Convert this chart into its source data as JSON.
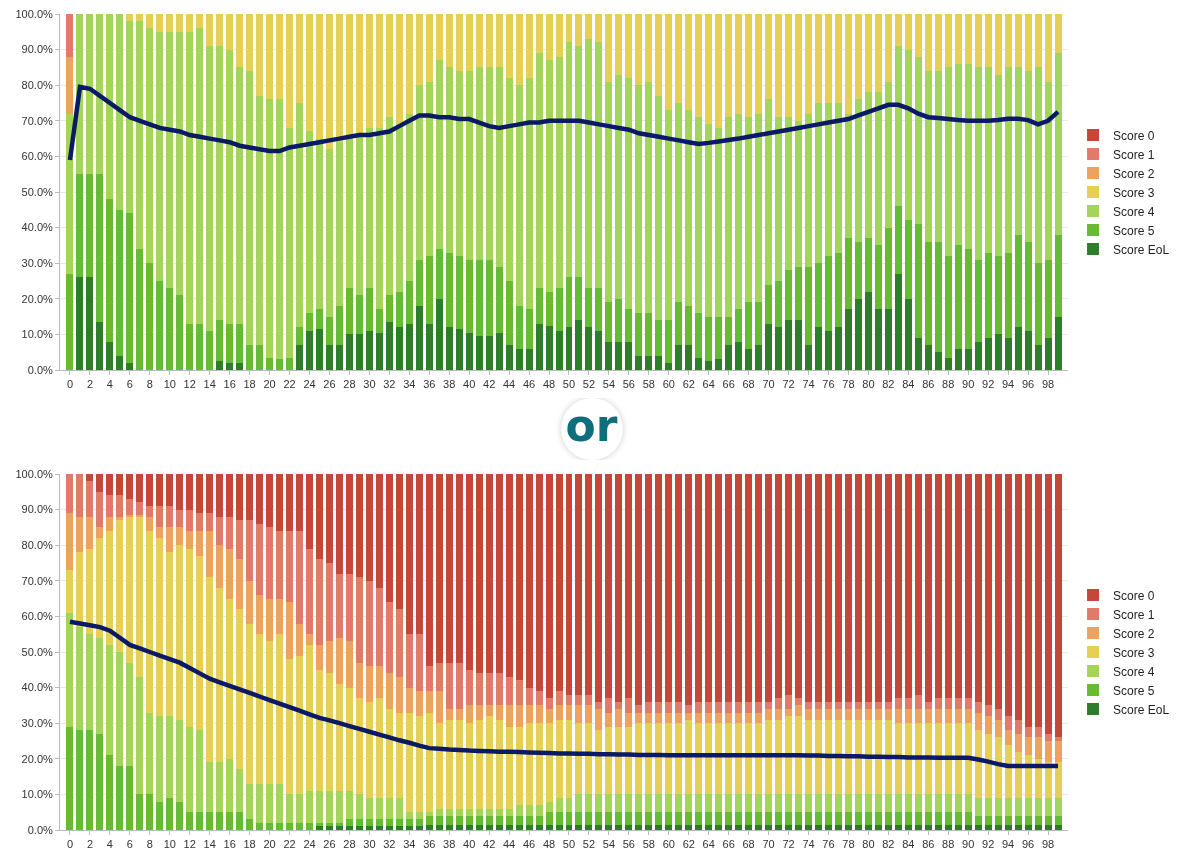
{
  "chart_data": [
    {
      "type": "bar",
      "stacked": true,
      "legend": "right",
      "grid": "y",
      "x": [
        0,
        1,
        2,
        3,
        4,
        5,
        6,
        7,
        8,
        9,
        10,
        11,
        12,
        13,
        14,
        15,
        16,
        17,
        18,
        19,
        20,
        21,
        22,
        23,
        24,
        25,
        26,
        27,
        28,
        29,
        30,
        31,
        32,
        33,
        34,
        35,
        36,
        37,
        38,
        39,
        40,
        41,
        42,
        43,
        44,
        45,
        46,
        47,
        48,
        49,
        50,
        51,
        52,
        53,
        54,
        55,
        56,
        57,
        58,
        59,
        60,
        61,
        62,
        63,
        64,
        65,
        66,
        67,
        68,
        69,
        70,
        71,
        72,
        73,
        74,
        75,
        76,
        77,
        78,
        79,
        80,
        81,
        82,
        83,
        84,
        85,
        86,
        87,
        88,
        89,
        90,
        91,
        92,
        93,
        94,
        95,
        96,
        97,
        98,
        99
      ],
      "xlim": [
        -1,
        100
      ],
      "xticks": [
        0,
        2,
        4,
        6,
        8,
        10,
        12,
        14,
        16,
        18,
        20,
        22,
        24,
        26,
        28,
        30,
        32,
        34,
        36,
        38,
        40,
        42,
        44,
        46,
        48,
        50,
        52,
        54,
        56,
        58,
        60,
        62,
        64,
        66,
        68,
        70,
        72,
        74,
        76,
        78,
        80,
        82,
        84,
        86,
        88,
        90,
        92,
        94,
        96,
        98
      ],
      "ylim": [
        0,
        100
      ],
      "yticks": [
        {
          "value": 0,
          "label": "0.0%"
        },
        {
          "value": 10,
          "label": "10.0%"
        },
        {
          "value": 20,
          "label": "20.0%"
        },
        {
          "value": 30,
          "label": "30.0%"
        },
        {
          "value": 40,
          "label": "40.0%"
        },
        {
          "value": 50,
          "label": "50.0%"
        },
        {
          "value": 60,
          "label": "60.0%"
        },
        {
          "value": 70,
          "label": "70.0%"
        },
        {
          "value": 80,
          "label": "80.0%"
        },
        {
          "value": 90,
          "label": "90.0%"
        },
        {
          "value": 100,
          "label": "100.0%"
        }
      ],
      "series": [
        {
          "name": "Score EoL",
          "color": "#2e7d2a",
          "values": [
            0,
            26,
            26,
            13.5,
            8,
            4,
            2,
            0,
            0,
            0,
            0,
            0,
            0,
            0,
            0,
            2.5,
            2,
            2,
            0,
            0,
            0,
            0,
            0,
            7,
            11,
            11.5,
            7,
            7,
            10,
            10,
            11,
            10.5,
            13.5,
            12,
            13,
            18,
            13,
            20,
            12,
            11.5,
            10.5,
            9.5,
            9.5,
            10.5,
            7,
            6,
            6,
            13,
            12.5,
            11,
            12,
            14,
            12,
            11,
            8,
            8,
            8,
            4,
            4,
            4,
            2,
            7,
            7,
            3.5,
            2.5,
            3,
            7,
            8,
            6,
            7,
            13,
            12,
            14,
            14,
            7,
            12,
            11,
            12,
            17,
            20,
            22,
            17,
            17,
            27,
            20,
            9,
            7,
            5,
            3.5,
            6,
            6,
            8,
            9,
            10,
            9,
            12,
            11,
            7,
            9,
            15
          ]
        },
        {
          "name": "Score 5",
          "color": "#66bb33",
          "values": [
            27,
            29,
            29,
            41.5,
            40,
            41,
            42,
            34,
            30,
            25,
            23,
            21,
            13,
            13,
            11,
            11.5,
            11,
            11,
            7,
            7,
            3.5,
            3,
            3.5,
            5,
            5,
            5.5,
            8,
            11,
            13,
            11,
            12,
            6.5,
            7.5,
            10,
            12,
            13,
            19,
            14,
            21,
            20.5,
            20.5,
            21.5,
            21.5,
            18.5,
            18,
            12,
            11,
            10,
            9.5,
            12,
            14,
            12,
            11,
            12,
            11,
            12,
            9,
            12,
            12,
            10,
            12,
            12,
            11,
            12.5,
            12.5,
            12,
            8,
            9,
            13,
            12,
            11,
            13,
            14,
            15,
            22,
            18,
            21,
            21,
            20,
            16,
            15,
            18,
            23,
            19,
            22,
            32,
            29,
            31,
            28.5,
            29,
            28,
            23,
            24,
            22,
            24,
            26,
            25,
            23,
            22,
            23
          ]
        },
        {
          "name": "Score 4",
          "color": "#a5d45a",
          "values": [
            45,
            45,
            45,
            45,
            52,
            55,
            54,
            64,
            66,
            70,
            72,
            74,
            82,
            83,
            80,
            77,
            77,
            72,
            77,
            70,
            72.5,
            73,
            64.5,
            63,
            51,
            48,
            47,
            46,
            42,
            45,
            45,
            51,
            50,
            47,
            47,
            49,
            49,
            53,
            52,
            52,
            53,
            54,
            54,
            56,
            57,
            62,
            65,
            66,
            65,
            65,
            66,
            65,
            70,
            69,
            62,
            63,
            65,
            64,
            65,
            63,
            59,
            56,
            55,
            55,
            54,
            53,
            56,
            55,
            52,
            53,
            52,
            46,
            43,
            41,
            43,
            45,
            43,
            42,
            35,
            40,
            41,
            43,
            41,
            45,
            48,
            47,
            48,
            48,
            53,
            51,
            52,
            54,
            52,
            51,
            52,
            47,
            48,
            55,
            50,
            51
          ]
        },
        {
          "name": "Score 3",
          "color": "#e6cf55",
          "values": [
            0,
            0,
            0,
            0,
            0,
            0,
            2,
            2,
            4,
            5,
            5,
            5,
            5,
            4,
            9,
            9,
            10,
            15,
            16,
            23,
            24,
            24,
            32,
            25,
            33,
            35,
            38,
            36,
            35,
            34,
            32,
            32,
            29,
            31,
            28,
            20,
            19,
            13,
            15,
            16,
            16,
            15,
            15,
            15,
            18,
            20,
            18,
            11,
            13,
            12,
            8,
            9,
            7,
            8,
            19,
            17,
            18,
            20,
            19,
            23,
            27,
            25,
            27,
            29,
            31,
            32,
            29,
            28,
            29,
            28,
            24,
            29,
            29,
            30,
            28,
            25,
            25,
            25,
            28,
            24,
            22,
            22,
            19,
            9,
            10,
            12,
            16,
            16,
            15,
            14,
            14,
            15,
            15,
            17,
            15,
            15,
            16,
            15,
            19,
            11
          ]
        },
        {
          "name": "Score 2",
          "color": "#eda35e",
          "values": [
            16,
            0,
            0,
            0,
            0,
            0,
            0,
            0,
            0,
            0,
            0,
            0,
            0,
            0,
            0,
            0,
            0,
            0,
            0,
            0,
            0,
            0,
            0,
            0,
            0,
            0,
            0,
            0,
            0,
            0,
            0,
            0,
            0,
            0,
            0,
            0,
            0,
            0,
            0,
            0,
            0,
            0,
            0,
            0,
            0,
            0,
            0,
            0,
            0,
            0,
            0,
            0,
            0,
            0,
            0,
            0,
            0,
            0,
            0,
            0,
            0,
            0,
            0,
            0,
            0,
            0,
            0,
            0,
            0,
            0,
            0,
            0,
            0,
            0,
            0,
            0,
            0,
            0,
            0,
            0,
            0,
            0,
            0,
            0,
            0,
            0,
            0,
            0,
            0,
            0,
            0,
            0,
            0,
            0,
            0,
            0,
            0,
            0,
            0,
            0
          ]
        },
        {
          "name": "Score 1",
          "color": "#e27a6a",
          "values": [
            12,
            0,
            0,
            0,
            0,
            0,
            0,
            0,
            0,
            0,
            0,
            0,
            0,
            0,
            0,
            0,
            0,
            0,
            0,
            0,
            0,
            0,
            0,
            0,
            0,
            0,
            0,
            0,
            0,
            0,
            0,
            0,
            0,
            0,
            0,
            0,
            0,
            0,
            0,
            0,
            0,
            0,
            0,
            0,
            0,
            0,
            0,
            0,
            0,
            0,
            0,
            0,
            0,
            0,
            0,
            0,
            0,
            0,
            0,
            0,
            0,
            0,
            0,
            0,
            0,
            0,
            0,
            0,
            0,
            0,
            0,
            0,
            0,
            0,
            0,
            0,
            0,
            0,
            0,
            0,
            0,
            0,
            0,
            0,
            0,
            0,
            0,
            0,
            0,
            0,
            0,
            0,
            0,
            0,
            0,
            0,
            0,
            0,
            0,
            0
          ]
        },
        {
          "name": "Score 0",
          "color": "#c4473a",
          "values": [
            0,
            0,
            0,
            0,
            0,
            0,
            0,
            0,
            0,
            0,
            0,
            0,
            0,
            0,
            0,
            0,
            0,
            0,
            0,
            0,
            0,
            0,
            0,
            0,
            0,
            0,
            0,
            0,
            0,
            0,
            0,
            0,
            0,
            0,
            0,
            0,
            0,
            0,
            0,
            0,
            0,
            0,
            0,
            0,
            0,
            0,
            0,
            0,
            0,
            0,
            0,
            0,
            0,
            0,
            0,
            0,
            0,
            0,
            0,
            0,
            0,
            0,
            0,
            0,
            0,
            0,
            0,
            0,
            0,
            0,
            0,
            0,
            0,
            0,
            0,
            0,
            0,
            0,
            0,
            0,
            0,
            0,
            0,
            0,
            0,
            0,
            0,
            0,
            0,
            0,
            0,
            0,
            0,
            0,
            0,
            0,
            0,
            0,
            0,
            0
          ]
        },
        {
          "type": "line",
          "color": "#0b1a66",
          "values": [
            59,
            79.5,
            79,
            77,
            75,
            73,
            71,
            70,
            69,
            68,
            67.5,
            67,
            66,
            65.5,
            65,
            64.5,
            64,
            63,
            62.5,
            62,
            61.5,
            61.5,
            62.5,
            63,
            63.5,
            64,
            64.5,
            65,
            65.5,
            66,
            66,
            66.5,
            67,
            68.5,
            70,
            71.5,
            71.5,
            71,
            71,
            70.5,
            70.5,
            69.5,
            68.5,
            68,
            68.5,
            69,
            69.5,
            69.5,
            70,
            70,
            70,
            70,
            69.5,
            69,
            68.5,
            68,
            67.5,
            66.5,
            66,
            65.5,
            65,
            64.5,
            64,
            63.5,
            63.8,
            64.2,
            64.6,
            65,
            65.5,
            66,
            66.5,
            67,
            67.5,
            68,
            68.5,
            69,
            69.5,
            70,
            70.5,
            71.5,
            72.5,
            73.5,
            74.5,
            74.5,
            73.5,
            72,
            71,
            70.8,
            70.5,
            70.2,
            70,
            70,
            70,
            70.2,
            70.6,
            70.6,
            70.2,
            69,
            70,
            72.5
          ]
        }
      ]
    },
    {
      "type": "other",
      "annotations": [
        "or"
      ]
    },
    {
      "type": "bar",
      "stacked": true,
      "legend": "right",
      "grid": "y",
      "x": [
        0,
        1,
        2,
        3,
        4,
        5,
        6,
        7,
        8,
        9,
        10,
        11,
        12,
        13,
        14,
        15,
        16,
        17,
        18,
        19,
        20,
        21,
        22,
        23,
        24,
        25,
        26,
        27,
        28,
        29,
        30,
        31,
        32,
        33,
        34,
        35,
        36,
        37,
        38,
        39,
        40,
        41,
        42,
        43,
        44,
        45,
        46,
        47,
        48,
        49,
        50,
        51,
        52,
        53,
        54,
        55,
        56,
        57,
        58,
        59,
        60,
        61,
        62,
        63,
        64,
        65,
        66,
        67,
        68,
        69,
        70,
        71,
        72,
        73,
        74,
        75,
        76,
        77,
        78,
        79,
        80,
        81,
        82,
        83,
        84,
        85,
        86,
        87,
        88,
        89,
        90,
        91,
        92,
        93,
        94,
        95,
        96,
        97,
        98,
        99
      ],
      "xlim": [
        -1,
        100
      ],
      "xticks": [
        0,
        2,
        4,
        6,
        8,
        10,
        12,
        14,
        16,
        18,
        20,
        22,
        24,
        26,
        28,
        30,
        32,
        34,
        36,
        38,
        40,
        42,
        44,
        46,
        48,
        50,
        52,
        54,
        56,
        58,
        60,
        62,
        64,
        66,
        68,
        70,
        72,
        74,
        76,
        78,
        80,
        82,
        84,
        86,
        88,
        90,
        92,
        94,
        96,
        98
      ],
      "ylim": [
        0,
        100
      ],
      "yticks": [
        {
          "value": 0,
          "label": "0.0%"
        },
        {
          "value": 10,
          "label": "10.0%"
        },
        {
          "value": 20,
          "label": "20.0%"
        },
        {
          "value": 30,
          "label": "30.0%"
        },
        {
          "value": 40,
          "label": "40.0%"
        },
        {
          "value": 50,
          "label": "50.0%"
        },
        {
          "value": 60,
          "label": "60.0%"
        },
        {
          "value": 70,
          "label": "70.0%"
        },
        {
          "value": 80,
          "label": "80.0%"
        },
        {
          "value": 90,
          "label": "90.0%"
        },
        {
          "value": 100,
          "label": "100.0%"
        }
      ],
      "series": [
        {
          "name": "Score EoL",
          "color": "#2e7d2a",
          "values": [
            0,
            0,
            0,
            0,
            0,
            0,
            0,
            0,
            0,
            0,
            0,
            0,
            0,
            0,
            0,
            0,
            0,
            0,
            0,
            0,
            0,
            0,
            0,
            0,
            0,
            1,
            1,
            1,
            1,
            1,
            1,
            1,
            1,
            1,
            1,
            1,
            1.5,
            1.5,
            1.5,
            1.5,
            1.5,
            1.5,
            1.5,
            1.5,
            1.5,
            1.5,
            1.5,
            1.5,
            1.5,
            1.5,
            1.5,
            1.5,
            1.5,
            1.5,
            1.5,
            1.5,
            1.5,
            1.5,
            1.5,
            1.5,
            1.5,
            1.5,
            1.5,
            1.5,
            1.5,
            1.5,
            1.5,
            1.5,
            1.5,
            1.5,
            1.5,
            1.5,
            1.5,
            1.5,
            1.5,
            1.5,
            1.5,
            1.5,
            1.5,
            1.5,
            1.5,
            1.5,
            1.5,
            1.5,
            1.5,
            1.5,
            1.5,
            1.5,
            1.5,
            1.5,
            1.5,
            1.5,
            1.5,
            1.5,
            1.5,
            1.5,
            1.5,
            1.5,
            1.5,
            1.5
          ]
        },
        {
          "name": "Score 5",
          "color": "#66bb33",
          "values": [
            29,
            28,
            28,
            27,
            21,
            18,
            18,
            10,
            10,
            8,
            9,
            8,
            5,
            5,
            5,
            5,
            5,
            5,
            3,
            2,
            2,
            2,
            2,
            2,
            2,
            1,
            1,
            1,
            2,
            2,
            2,
            2,
            2,
            2,
            2,
            2,
            2.5,
            2.5,
            2.5,
            2.5,
            2.5,
            2.5,
            2.5,
            2.5,
            2.5,
            2.5,
            2.5,
            2.5,
            3.5,
            3.5,
            3.5,
            3.5,
            3.5,
            3.5,
            3.5,
            3.5,
            3.5,
            3.5,
            3.5,
            3.5,
            3.5,
            3.5,
            3.5,
            3.5,
            3.5,
            3.5,
            3.5,
            3.5,
            3.5,
            3.5,
            3.5,
            3.5,
            3.5,
            3.5,
            3.5,
            3.5,
            3.5,
            3.5,
            3.5,
            3.5,
            3.5,
            3.5,
            3.5,
            3.5,
            3.5,
            3.5,
            3.5,
            3.5,
            3.5,
            3.5,
            3.5,
            2.5,
            2.5,
            2.5,
            2.5,
            2.5,
            2.5,
            2.5,
            2.5,
            2.5
          ]
        },
        {
          "name": "Score 4",
          "color": "#a5d45a",
          "values": [
            32,
            29,
            27,
            27,
            31,
            32,
            29,
            33,
            23,
            24,
            23,
            23,
            24,
            23,
            14,
            14,
            15,
            12,
            10,
            11,
            11,
            11,
            8,
            8,
            9,
            9,
            9,
            9,
            8,
            7,
            6,
            6,
            6,
            6,
            2,
            2,
            1,
            2,
            2,
            2,
            2,
            2,
            2,
            2,
            2,
            3,
            3,
            3,
            3,
            4,
            4,
            5,
            5,
            5,
            5,
            5,
            5,
            5,
            5,
            5,
            5,
            5,
            5,
            5,
            5,
            5,
            5,
            5,
            5,
            5,
            5,
            5,
            5,
            5,
            5,
            5,
            5,
            5,
            5,
            5,
            5,
            5,
            5,
            5,
            5,
            5,
            5,
            5,
            5,
            5,
            5,
            5,
            5,
            5,
            5,
            5,
            5,
            5,
            5,
            5
          ]
        },
        {
          "name": "Score 3",
          "color": "#e6cf55",
          "values": [
            12,
            21,
            24,
            28,
            32,
            37,
            41,
            45,
            51,
            50,
            46,
            49,
            50,
            49,
            52,
            49,
            45,
            45,
            45,
            42,
            40,
            42,
            38,
            39,
            41,
            34,
            33,
            30,
            29,
            27,
            27,
            28,
            25,
            24,
            28,
            27,
            28,
            24,
            25,
            25,
            24,
            25,
            26,
            25,
            23,
            22,
            23,
            23,
            22,
            22,
            22,
            20,
            20,
            18,
            19,
            19,
            19,
            20,
            20,
            20,
            20,
            20,
            21,
            20,
            20,
            20,
            20,
            20,
            20,
            20,
            21,
            21,
            22,
            22,
            21,
            21,
            21,
            21,
            21,
            21,
            21,
            21,
            21,
            20,
            20,
            20,
            20,
            20,
            20,
            20,
            20,
            19,
            18,
            17,
            15,
            13,
            12,
            11,
            10,
            10
          ]
        },
        {
          "name": "Score 2",
          "color": "#eda35e",
          "values": [
            16,
            10,
            9,
            3,
            4,
            1,
            0.5,
            0.5,
            4,
            3,
            7,
            5,
            5,
            7,
            13,
            12,
            14,
            14,
            12,
            11,
            12,
            10,
            16,
            9,
            3,
            7,
            9,
            13,
            13,
            10,
            10,
            9,
            10,
            10,
            7,
            7,
            6,
            9,
            3,
            3,
            5,
            4,
            3,
            4,
            6,
            6,
            5,
            5,
            4,
            4,
            4,
            5,
            5,
            6,
            4,
            5,
            4,
            3,
            3,
            3,
            3,
            3,
            2,
            3,
            3,
            3,
            3,
            3,
            3,
            3,
            3,
            3,
            2,
            3,
            3,
            3,
            3,
            3,
            3,
            3,
            3,
            3,
            3,
            4,
            4,
            4,
            4,
            4,
            4,
            4,
            4,
            5,
            5,
            5,
            4,
            5,
            5,
            6,
            6,
            6
          ]
        },
        {
          "name": "Score 1",
          "color": "#e27a6a",
          "values": [
            11,
            12,
            10,
            10,
            6,
            6,
            4.5,
            3.5,
            3,
            6,
            6,
            5,
            6,
            5,
            5,
            8,
            9,
            11,
            17,
            20,
            20,
            19,
            20,
            26,
            24,
            24,
            22,
            18,
            19,
            24,
            24,
            22,
            20,
            19,
            15,
            16,
            7,
            8,
            13,
            13,
            10,
            9,
            9,
            9,
            8,
            7,
            5,
            4,
            3,
            4,
            3,
            3,
            3,
            2,
            4,
            2,
            4,
            2,
            3,
            3,
            3,
            3,
            2,
            3,
            3,
            3,
            3,
            3,
            3,
            3,
            2,
            3,
            4,
            2,
            2,
            2,
            2,
            2,
            2,
            2,
            2,
            2,
            2,
            3,
            3,
            4,
            2,
            3,
            3,
            3,
            3,
            3,
            3,
            3,
            4,
            4,
            3,
            3,
            2,
            1
          ]
        },
        {
          "name": "Score 0",
          "color": "#c4473a",
          "values": [
            0,
            0,
            2,
            5,
            6,
            6,
            7,
            8,
            9,
            9,
            9,
            10,
            10,
            11,
            11,
            12,
            12,
            13,
            13,
            14,
            15,
            16,
            16,
            16,
            21,
            24,
            25,
            28,
            28,
            29,
            30,
            32,
            36,
            38,
            45,
            45,
            54,
            53,
            53,
            53,
            55,
            56,
            56,
            56,
            57,
            58,
            60,
            61,
            63,
            61,
            62,
            62,
            62,
            64,
            63,
            64,
            63,
            65,
            64,
            64,
            64,
            64,
            65,
            64,
            64,
            64,
            64,
            64,
            64,
            64,
            64,
            63,
            62,
            63,
            64,
            64,
            64,
            64,
            64,
            64,
            64,
            64,
            64,
            63,
            63,
            62,
            64,
            63,
            63,
            63,
            63,
            64,
            65,
            66,
            68,
            69,
            71,
            71,
            73,
            74
          ]
        },
        {
          "type": "line",
          "color": "#0b1a66",
          "values": [
            58.5,
            58,
            57.5,
            57,
            56,
            54,
            52,
            51,
            50,
            49,
            48,
            47,
            45.5,
            44,
            42.5,
            41.5,
            40.5,
            39.5,
            38.5,
            37.5,
            36.5,
            35.5,
            34.5,
            33.5,
            32.5,
            31.5,
            30.8,
            30,
            29.2,
            28.4,
            27.6,
            26.8,
            26,
            25.2,
            24.5,
            23.7,
            23,
            22.8,
            22.6,
            22.5,
            22.3,
            22.2,
            22.1,
            22,
            22,
            21.9,
            21.8,
            21.7,
            21.6,
            21.5,
            21.5,
            21.4,
            21.4,
            21.3,
            21.3,
            21.2,
            21.2,
            21.1,
            21.1,
            21.1,
            21,
            21,
            21,
            21,
            21,
            21,
            21,
            21,
            21,
            21,
            21,
            21,
            21,
            21,
            20.9,
            20.9,
            20.8,
            20.8,
            20.7,
            20.7,
            20.6,
            20.6,
            20.5,
            20.5,
            20.4,
            20.4,
            20.4,
            20.3,
            20.3,
            20.3,
            20.3,
            19.8,
            19.2,
            18.5,
            18,
            18,
            18,
            18,
            18,
            18
          ]
        }
      ]
    }
  ]
}
